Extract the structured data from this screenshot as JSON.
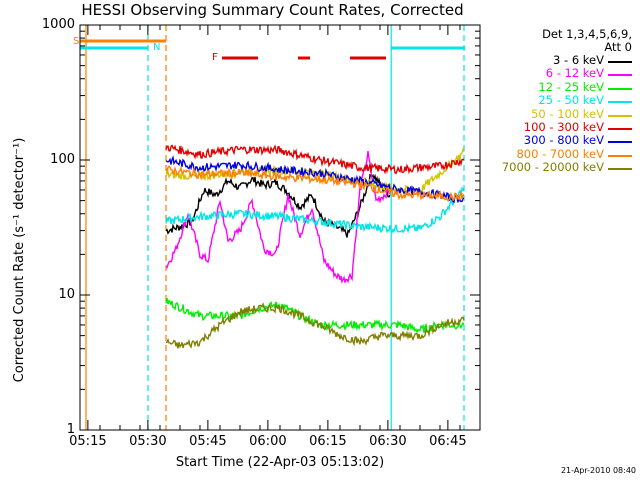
{
  "chart_data": {
    "type": "line",
    "title": "HESSI Observing Summary Count Rates, Corrected",
    "xlabel": "Start Time (22-Apr-03 05:13:02)",
    "ylabel": "Corrected Count Rate (s⁻¹ detector⁻¹)",
    "yscale": "log",
    "ylim": [
      1,
      1000
    ],
    "xlim_minutes": [
      0,
      100
    ],
    "x_tick_labels": [
      "05:15",
      "05:30",
      "05:45",
      "06:00",
      "06:15",
      "06:30",
      "06:45"
    ],
    "x_tick_minutes": [
      1.97,
      16.97,
      31.97,
      46.97,
      61.97,
      76.97,
      91.97
    ],
    "y_tick_labels": [
      "1",
      "10",
      "100",
      "1000"
    ],
    "y_tick_values": [
      1,
      10,
      100,
      1000
    ],
    "legend_header": [
      "Det 1,3,4,5,6,9,",
      "Att 0"
    ],
    "legend_position": "right",
    "flags": [
      {
        "label": "S",
        "color": "#ff7f00"
      },
      {
        "label": "N",
        "color": "#00e5e5"
      },
      {
        "label": "F",
        "color": "#e00000"
      }
    ],
    "flare_segments_minutes": [
      [
        35.5,
        44.5
      ],
      [
        54.5,
        57.5
      ],
      [
        67.5,
        76.5
      ]
    ],
    "vertical_markers_minutes": [
      {
        "m": 1.5,
        "color": "#ff7f00",
        "style": "solid"
      },
      {
        "m": 17,
        "color": "#00e5e5",
        "style": "dashed"
      },
      {
        "m": 21.5,
        "color": "#ff7f00",
        "style": "dashed"
      },
      {
        "m": 77.8,
        "color": "#00e5e5",
        "style": "solid"
      },
      {
        "m": 96,
        "color": "#00e5e5",
        "style": "dashed"
      }
    ],
    "series": [
      {
        "name": "3 - 6 keV",
        "color": "#000000",
        "x": [
          21.5,
          25,
          28,
          31,
          34,
          37,
          40,
          43,
          46,
          49,
          52,
          55,
          58,
          61,
          64,
          67,
          70,
          73,
          76,
          77.5
        ],
        "y": [
          30,
          32,
          35,
          60,
          55,
          70,
          62,
          72,
          65,
          68,
          58,
          45,
          55,
          35,
          32,
          28,
          45,
          80,
          60,
          55
        ]
      },
      {
        "name": "6 - 12 keV",
        "color": "#ff00ff",
        "x": [
          21.5,
          24,
          27,
          30,
          32,
          35,
          37,
          40,
          43,
          46,
          49,
          52,
          55,
          58,
          61,
          64,
          66,
          68,
          70,
          72,
          74,
          76,
          77.5
        ],
        "y": [
          16,
          22,
          40,
          20,
          18,
          50,
          25,
          30,
          50,
          22,
          20,
          55,
          28,
          45,
          18,
          14,
          13,
          14,
          60,
          110,
          50,
          55,
          60
        ]
      },
      {
        "name": "12 - 25 keV",
        "color": "#00ee00",
        "x": [
          21.5,
          30,
          40,
          45,
          50,
          55,
          60,
          65,
          70,
          75,
          80,
          85,
          90,
          95,
          96
        ],
        "y": [
          9,
          7,
          7,
          8,
          8.5,
          7,
          6,
          6,
          6,
          6,
          6,
          5.5,
          6,
          6,
          6
        ]
      },
      {
        "name": "25 - 50 keV",
        "color": "#00e5e5",
        "x": [
          21.5,
          30,
          40,
          50,
          60,
          70,
          80,
          85,
          90,
          93,
          96
        ],
        "y": [
          35,
          38,
          40,
          38,
          35,
          32,
          31,
          31,
          38,
          48,
          62
        ]
      },
      {
        "name": "50 - 100 keV",
        "color": "#d4c200",
        "x": [
          21.5,
          30,
          40,
          50,
          60,
          70,
          80,
          85,
          90,
          93,
          96
        ],
        "y": [
          78,
          75,
          82,
          84,
          80,
          70,
          60,
          60,
          80,
          95,
          115
        ]
      },
      {
        "name": "100 - 300 keV",
        "color": "#e00000",
        "x": [
          21.5,
          30,
          40,
          50,
          60,
          70,
          80,
          85,
          90,
          93,
          96
        ],
        "y": [
          125,
          110,
          120,
          118,
          100,
          88,
          85,
          88,
          90,
          95,
          100
        ]
      },
      {
        "name": "300 - 800 keV",
        "color": "#0000e0",
        "x": [
          21.5,
          30,
          40,
          50,
          60,
          70,
          80,
          85,
          90,
          93,
          96
        ],
        "y": [
          100,
          88,
          92,
          85,
          80,
          70,
          60,
          58,
          55,
          52,
          52
        ]
      },
      {
        "name": "800 - 7000 keV",
        "color": "#ff7f00",
        "x": [
          21.5,
          30,
          40,
          50,
          60,
          70,
          80,
          85,
          90,
          93,
          96
        ],
        "y": [
          85,
          78,
          80,
          75,
          72,
          66,
          55,
          55,
          54,
          53,
          54
        ]
      },
      {
        "name": "7000 - 20000 keV",
        "color": "#7f7f00",
        "x": [
          21.5,
          25,
          30,
          35,
          40,
          45,
          50,
          55,
          60,
          65,
          70,
          75,
          80,
          85,
          90,
          95,
          96
        ],
        "y": [
          4.5,
          4.2,
          4.5,
          6,
          7.5,
          8,
          8,
          7,
          6,
          5,
          4.5,
          5,
          5,
          5,
          6,
          6.5,
          6.5
        ]
      }
    ],
    "grid": false
  },
  "footer": "21-Apr-2010 08:40"
}
